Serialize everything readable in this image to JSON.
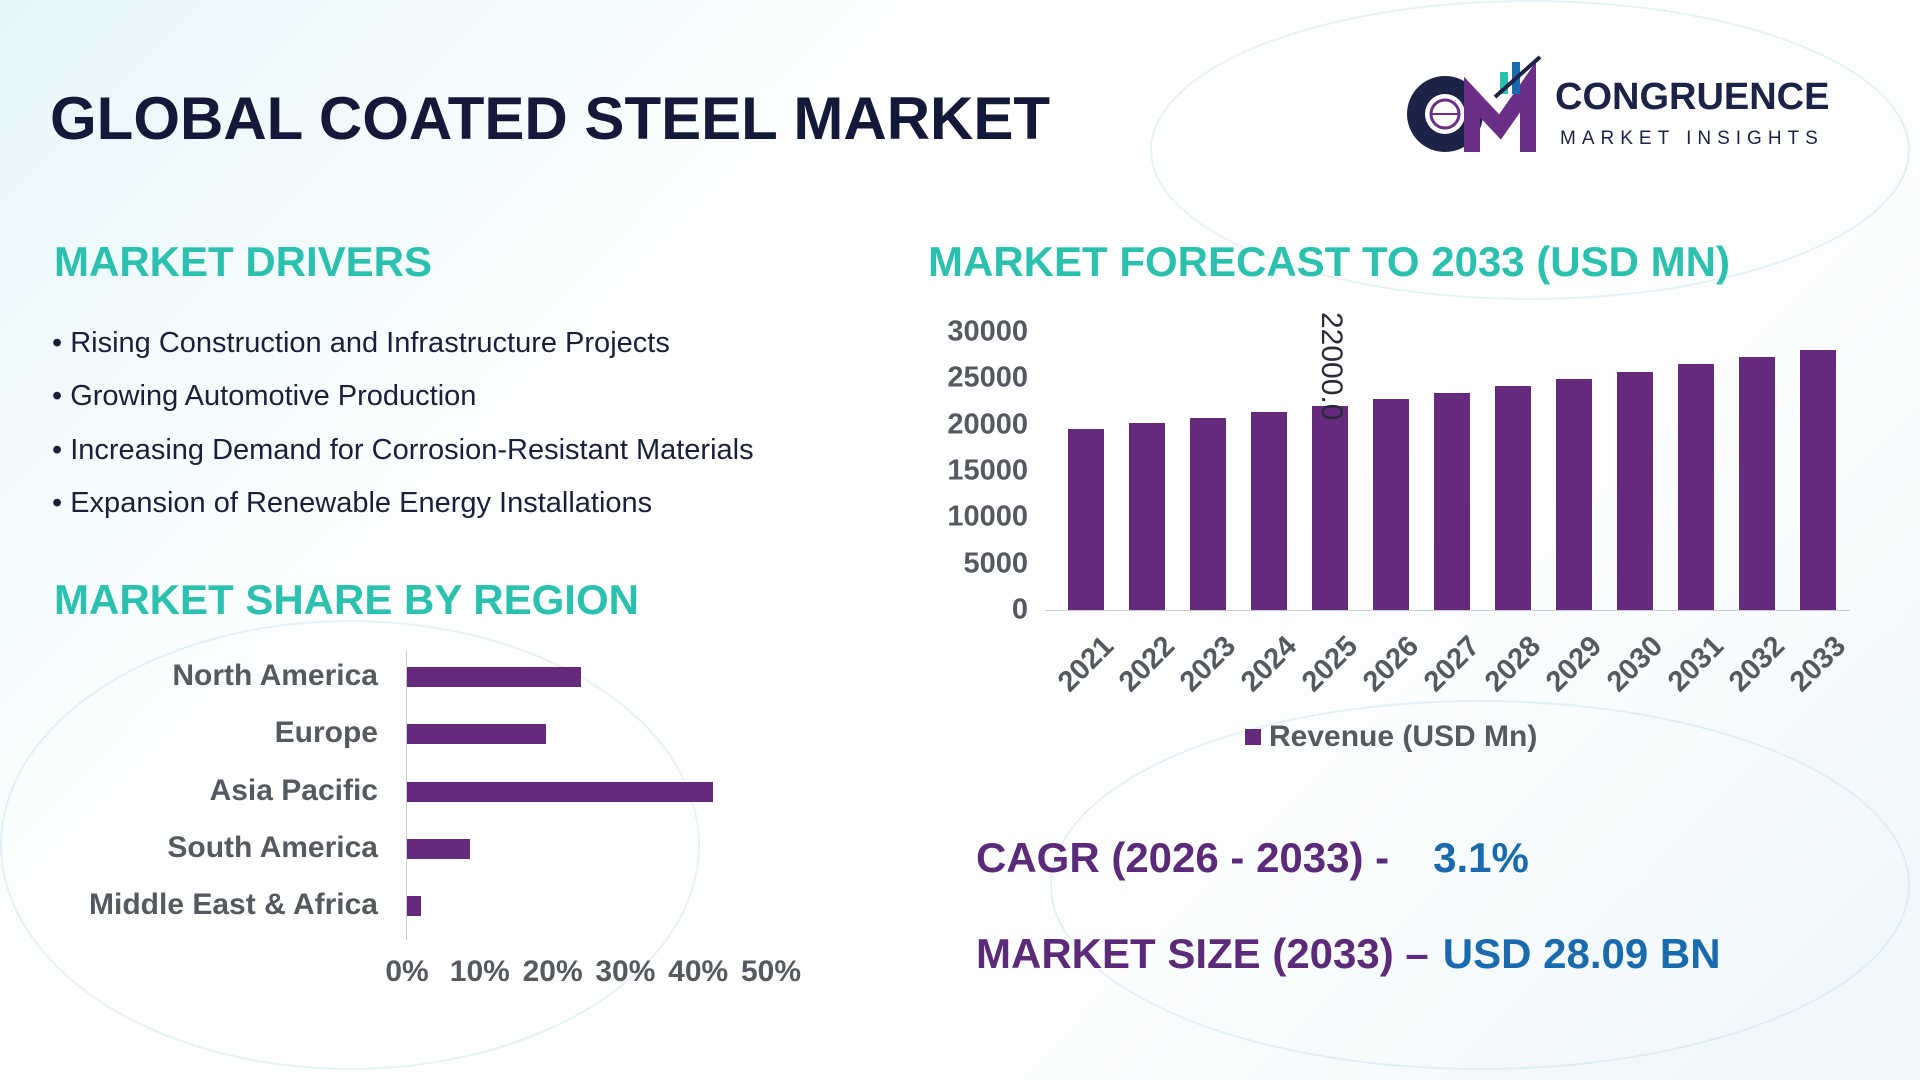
{
  "title": "GLOBAL COATED STEEL MARKET",
  "logo": {
    "brand": "CONGRUENCE",
    "tagline": "MARKET INSIGHTS",
    "monogram": "CM"
  },
  "drivers": {
    "heading": "MARKET DRIVERS",
    "items": [
      "Rising Construction and Infrastructure Projects",
      "Growing Automotive Production",
      "Increasing Demand for Corrosion-Resistant Materials",
      "Expansion of Renewable Energy Installations"
    ]
  },
  "region": {
    "heading": "MARKET SHARE BY REGION"
  },
  "forecast": {
    "heading": "MARKET FORECAST TO 2033 (USD MN)"
  },
  "stats": {
    "cagr_label": "CAGR (2026 - 2033) -",
    "cagr_value": "3.1%",
    "size_label": "MARKET SIZE (2033) –",
    "size_value": "USD 28.09 BN"
  },
  "colors": {
    "bar": "#652a7b",
    "heading": "#2cc0ae",
    "title": "#14193a",
    "stat_label": "#5b2a78",
    "stat_value": "#1a6aae"
  },
  "chart_data": [
    {
      "type": "bar",
      "orientation": "horizontal",
      "categories": [
        "North America",
        "Europe",
        "Asia Pacific",
        "South America",
        "Middle East & Africa"
      ],
      "values": [
        25,
        20,
        44,
        9,
        2
      ],
      "xlim": [
        0,
        50
      ],
      "xticks": [
        "0%",
        "10%",
        "20%",
        "30%",
        "40%",
        "50%"
      ],
      "unit": "%"
    },
    {
      "type": "bar",
      "categories": [
        "2021",
        "2022",
        "2023",
        "2024",
        "2025",
        "2026",
        "2027",
        "2028",
        "2029",
        "2030",
        "2031",
        "2032",
        "2033"
      ],
      "series": [
        {
          "name": "Revenue (USD Mn)",
          "values": [
            19500,
            20200,
            20700,
            21400,
            22000,
            22800,
            23400,
            24200,
            24900,
            25700,
            26600,
            27300,
            28090
          ]
        }
      ],
      "ylim": [
        0,
        30000
      ],
      "yticks": [
        "0",
        "5000",
        "10000",
        "15000",
        "20000",
        "25000",
        "30000"
      ],
      "data_labels": [
        {
          "category": "2025",
          "text": "22000.0"
        }
      ],
      "legend": "bottom"
    }
  ]
}
